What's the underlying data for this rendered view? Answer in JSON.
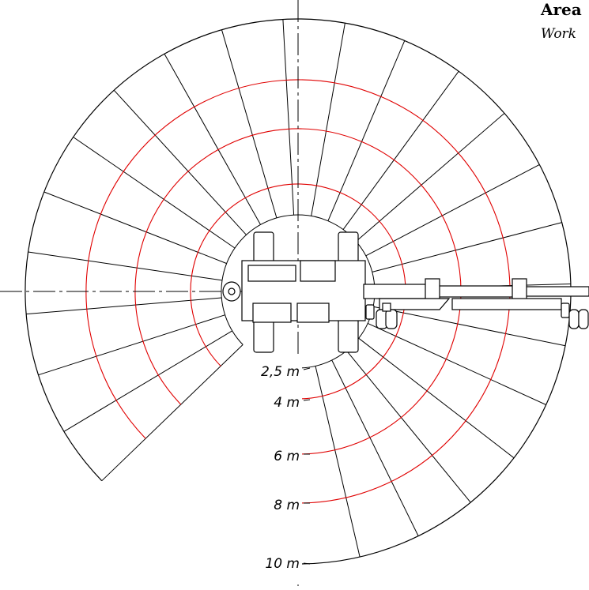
{
  "header": {
    "title": "Area",
    "subtitle": "Work"
  },
  "radius_labels": [
    "2,5 m",
    "4 m",
    "6 m",
    "8 m",
    "10 m"
  ],
  "colors": {
    "grid_lines": "#000000",
    "radius_circles": "#e00000",
    "background": "#ffffff"
  }
}
